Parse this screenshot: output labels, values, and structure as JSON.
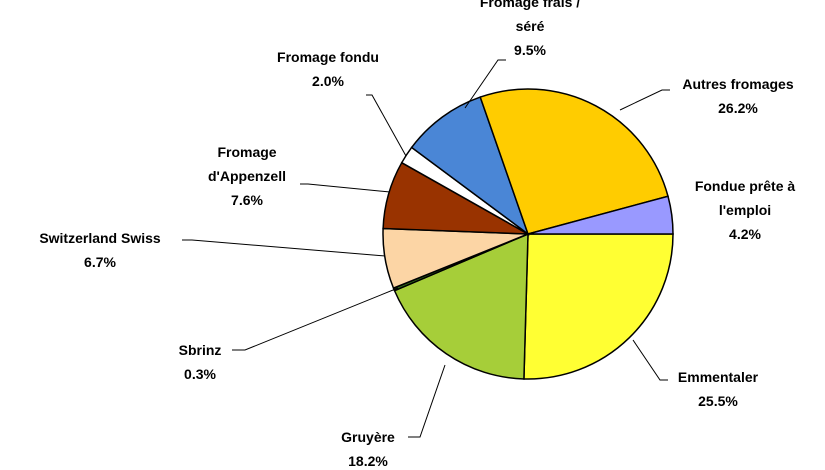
{
  "chart_data": {
    "type": "pie",
    "categories": [
      "Emmentaler",
      "Gruyère",
      "Sbrinz",
      "Switzerland Swiss",
      "Fromage d'Appenzell",
      "Fromage fondu",
      "Fromage frais / séré",
      "Autres fromages",
      "Fondue prête à l'emploi"
    ],
    "values": [
      25.5,
      18.2,
      0.3,
      6.7,
      7.6,
      2.0,
      9.5,
      26.2,
      4.2
    ],
    "value_labels": [
      "25.5%",
      "18.2%",
      "0.3%",
      "6.7%",
      "7.6%",
      "2.0%",
      "9.5%",
      "26.2%",
      "4.2%"
    ],
    "colors": [
      "#ffff33",
      "#a6ce39",
      "#2f6b1a",
      "#fcd5a5",
      "#993300",
      "#ffffff",
      "#4a86d6",
      "#ffcc00",
      "#9999ff"
    ]
  }
}
